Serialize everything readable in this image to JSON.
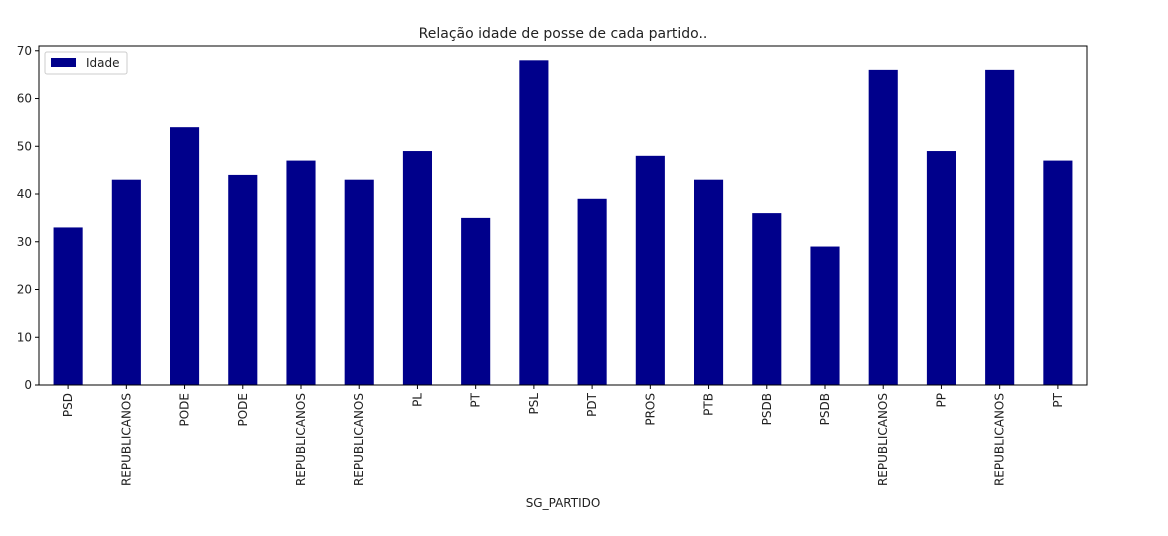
{
  "chart_data": {
    "type": "bar",
    "title": "Relação idade de posse de cada partido..",
    "xlabel": "SG_PARTIDO",
    "ylabel": "",
    "ylim": [
      0,
      71
    ],
    "yticks": [
      0,
      10,
      20,
      30,
      40,
      50,
      60,
      70
    ],
    "grid": false,
    "legend_position": "top-left",
    "categories": [
      "PSD",
      "REPUBLICANOS",
      "PODE",
      "PODE",
      "REPUBLICANOS",
      "REPUBLICANOS",
      "PL",
      "PT",
      "PSL",
      "PDT",
      "PROS",
      "PTB",
      "PSDB",
      "PSDB",
      "REPUBLICANOS",
      "PP",
      "REPUBLICANOS",
      "PT"
    ],
    "series": [
      {
        "name": "Idade",
        "color": "#00008b",
        "values": [
          33,
          43,
          54,
          44,
          47,
          43,
          49,
          35,
          68,
          39,
          48,
          43,
          36,
          29,
          66,
          49,
          66,
          47
        ]
      }
    ]
  }
}
